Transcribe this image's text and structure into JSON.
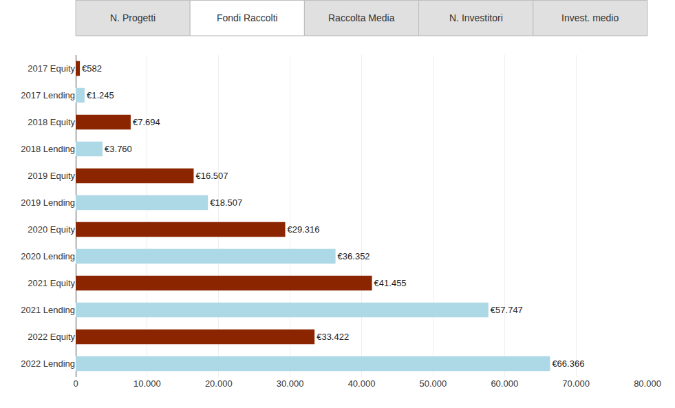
{
  "chart_data": {
    "type": "bar",
    "orientation": "horizontal",
    "annotations": [
      "N. Progetti",
      "Fondi Raccolti",
      "Raccolta Media",
      "N. Investitori",
      "Invest. medio"
    ],
    "categories": [
      "2017 Equity",
      "2017 Lending",
      "2018 Equity",
      "2018 Lending",
      "2019 Equity",
      "2019 Lending",
      "2020 Equity",
      "2020 Lending",
      "2021 Equity",
      "2021 Lending",
      "2022 Equity",
      "2022 Lending"
    ],
    "values": [
      582,
      1245,
      7694,
      3760,
      16507,
      18507,
      29316,
      36352,
      41455,
      57747,
      33422,
      66366
    ],
    "value_labels": [
      "€582",
      "€1.245",
      "€7.694",
      "€3.760",
      "€16.507",
      "€18.507",
      "€29.316",
      "€36.352",
      "€41.455",
      "€57.747",
      "€33.422",
      "€66.366"
    ],
    "colors": [
      "#8B2500",
      "#ADD8E6",
      "#8B2500",
      "#ADD8E6",
      "#8B2500",
      "#ADD8E6",
      "#8B2500",
      "#ADD8E6",
      "#8B2500",
      "#ADD8E6",
      "#8B2500",
      "#ADD8E6"
    ],
    "xlim": [
      0,
      80000
    ],
    "xticks": [
      0,
      {
        "value": 10000,
        "label": "10.000"
      },
      {
        "value": 20000,
        "label": "20.000"
      },
      {
        "value": 30000,
        "label": "30.000"
      },
      {
        "value": 40000,
        "label": "40.000"
      },
      {
        "value": 50000,
        "label": "50.000"
      },
      {
        "value": 60000,
        "label": "60.000"
      },
      {
        "value": 70000,
        "label": "70.000"
      },
      {
        "value": 80000,
        "label": "80.000"
      }
    ],
    "grid": true,
    "data_labels": true
  }
}
